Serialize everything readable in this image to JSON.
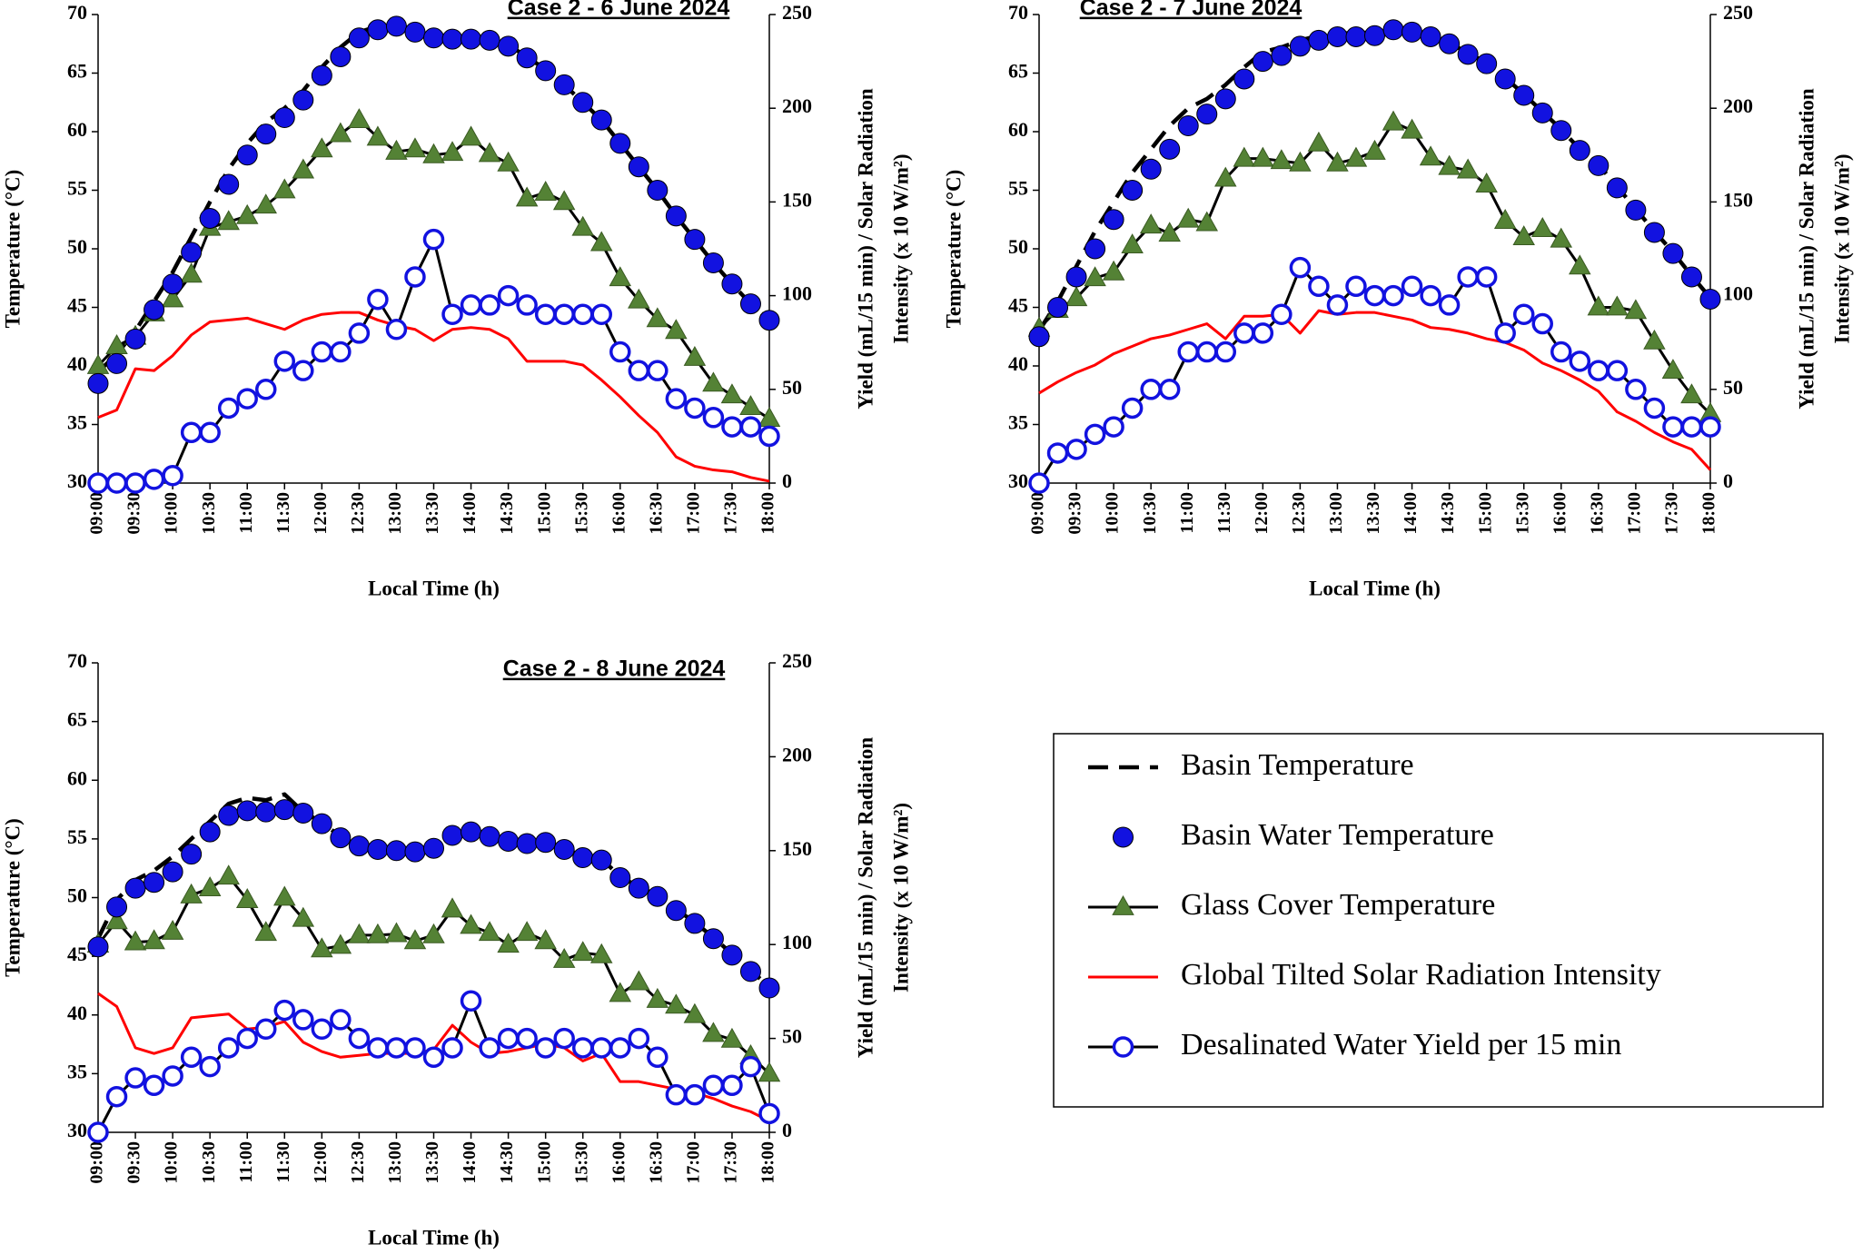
{
  "chart_data": [
    {
      "type": "line",
      "title": "Case 2 - 6 June 2024",
      "xlabel": "Local Time (h)",
      "ylabel": "Temperature (°C)",
      "y2label": [
        "Yield (mL/15 min) / Solar Radiation",
        "Intensity (x 10 W/m²)"
      ],
      "categories": [
        "09:00",
        null,
        "09:30",
        null,
        "10:00",
        null,
        "10:30",
        null,
        "11:00",
        null,
        "11:30",
        null,
        "12:00",
        null,
        "12:30",
        null,
        "13:00",
        null,
        "13:30",
        null,
        "14:00",
        null,
        "14:30",
        null,
        "15:00",
        null,
        "15:30",
        null,
        "16:00",
        null,
        "16:30",
        null,
        "17:00",
        null,
        "17:30",
        null,
        "18:00"
      ],
      "ylim": [
        30,
        70
      ],
      "yticks": [
        30,
        35,
        40,
        45,
        50,
        55,
        60,
        65,
        70
      ],
      "y2lim": [
        0,
        250
      ],
      "y2ticks": [
        0,
        50,
        100,
        150,
        200,
        250
      ],
      "series": [
        {
          "name": "Basin Temperature",
          "color": "#000000",
          "line": "dashed",
          "marker": "none",
          "values": [
            39.5,
            41,
            43,
            45.5,
            48,
            51,
            54,
            56.8,
            59,
            60.8,
            62,
            63.5,
            65.5,
            67.2,
            68.5,
            69,
            69.2,
            68.6,
            68.1,
            68,
            68,
            67.9,
            67.4,
            66.4,
            65.3,
            64,
            62.5,
            61,
            59,
            57,
            55,
            52.8,
            50.8,
            48.8,
            47,
            45.3,
            43.9
          ]
        },
        {
          "name": "Basin Water Temperature",
          "color": "#1212e0",
          "line": "none",
          "marker": "circle",
          "values": [
            38.5,
            40.2,
            42.3,
            44.8,
            47,
            49.7,
            52.6,
            55.5,
            58,
            59.8,
            61.2,
            62.7,
            64.8,
            66.4,
            68,
            68.7,
            69,
            68.5,
            68,
            67.9,
            67.9,
            67.8,
            67.3,
            66.3,
            65.2,
            64,
            62.5,
            61,
            59,
            57,
            55,
            52.8,
            50.8,
            48.8,
            47,
            45.3,
            43.9
          ]
        },
        {
          "name": "Glass Cover Temperature",
          "color": "#000000",
          "marker_color": "#548235",
          "line": "solid",
          "marker": "triangle",
          "values": [
            40,
            41.7,
            42.5,
            44.5,
            45.7,
            47.8,
            51.8,
            52.3,
            52.8,
            53.7,
            55,
            56.7,
            58.5,
            59.8,
            61,
            59.5,
            58.3,
            58.5,
            58,
            58.2,
            59.5,
            58.1,
            57.3,
            54.3,
            54.8,
            54,
            51.8,
            50.5,
            47.5,
            45.6,
            44,
            43,
            40.7,
            38.5,
            37.5,
            36.5,
            35.5
          ]
        },
        {
          "name": "Global Tilted Solar Radiation Intensity",
          "color": "#ff0000",
          "line": "solid",
          "marker": "none",
          "axis": "y2",
          "values": [
            35,
            39,
            61,
            60,
            68,
            79,
            86,
            87,
            88,
            85,
            82,
            87,
            90,
            91,
            91,
            87,
            84,
            82,
            76,
            82,
            83,
            82,
            77,
            65,
            65,
            65,
            63,
            55,
            46,
            36,
            27,
            14,
            9,
            7,
            6,
            3,
            1
          ]
        },
        {
          "name": "Desalinated Water Yield per 15 min",
          "color": "#000000",
          "marker_color": "#1212e0",
          "line": "solid",
          "marker": "open-circle",
          "axis": "y2",
          "values": [
            0,
            0,
            0,
            2,
            4,
            27,
            27,
            40,
            45,
            50,
            65,
            60,
            70,
            70,
            80,
            98,
            82,
            110,
            130,
            90,
            95,
            95,
            100,
            95,
            90,
            90,
            90,
            90,
            70,
            60,
            60,
            45,
            40,
            35,
            30,
            30,
            25
          ]
        }
      ]
    },
    {
      "type": "line",
      "title": "Case 2 - 7 June 2024",
      "xlabel": "Local Time (h)",
      "ylabel": "Temperature (°C)",
      "y2label": [
        "Yield (mL/15 min) / Solar Radiation",
        "Intensity (x 10 W/m²)"
      ],
      "categories": [
        "09:00",
        null,
        "09:30",
        null,
        "10:00",
        null,
        "10:30",
        null,
        "11:00",
        null,
        "11:30",
        null,
        "12:00",
        null,
        "12:30",
        null,
        "13:00",
        null,
        "13:30",
        null,
        "14:00",
        null,
        "14:30",
        null,
        "15:00",
        null,
        "15:30",
        null,
        "16:00",
        null,
        "16:30",
        null,
        "17:00",
        null,
        "17:30",
        null,
        "18:00"
      ],
      "ylim": [
        30,
        70
      ],
      "yticks": [
        30,
        35,
        40,
        45,
        50,
        55,
        60,
        65,
        70
      ],
      "y2lim": [
        0,
        250
      ],
      "y2ticks": [
        0,
        50,
        100,
        150,
        200,
        250
      ],
      "series": [
        {
          "name": "Basin Temperature",
          "color": "#000000",
          "line": "dashed",
          "marker": "none",
          "values": [
            43,
            45.5,
            48.5,
            51.5,
            54,
            56.5,
            58.5,
            60.5,
            62,
            62.8,
            64,
            65.5,
            66.8,
            67.2,
            67.8,
            68.2,
            68.4,
            68.4,
            68.5,
            68.9,
            68.7,
            68.2,
            67.6,
            66.7,
            65.9,
            64.6,
            63.2,
            61.7,
            60.2,
            58.5,
            57.2,
            55.3,
            53.4,
            51.5,
            49.7,
            47.7,
            45.8
          ]
        },
        {
          "name": "Basin Water Temperature",
          "color": "#1212e0",
          "line": "none",
          "marker": "circle",
          "values": [
            42.5,
            45,
            47.6,
            50,
            52.5,
            55,
            56.8,
            58.5,
            60.5,
            61.5,
            62.8,
            64.5,
            66,
            66.5,
            67.3,
            67.8,
            68.1,
            68.1,
            68.2,
            68.7,
            68.5,
            68.1,
            67.5,
            66.6,
            65.8,
            64.5,
            63.1,
            61.6,
            60.1,
            58.4,
            57.1,
            55.2,
            53.3,
            51.4,
            49.6,
            47.6,
            45.7
          ]
        },
        {
          "name": "Glass Cover Temperature",
          "color": "#000000",
          "marker_color": "#548235",
          "line": "solid",
          "marker": "triangle",
          "values": [
            43.2,
            44.8,
            45.8,
            47.5,
            48,
            50.3,
            52,
            51.3,
            52.5,
            52.2,
            56,
            57.7,
            57.7,
            57.5,
            57.3,
            59,
            57.3,
            57.7,
            58.3,
            60.8,
            60.1,
            57.8,
            57,
            56.7,
            55.5,
            52.4,
            51,
            51.7,
            50.8,
            48.5,
            45,
            45,
            44.7,
            42.1,
            39.6,
            37.5,
            35.9
          ]
        },
        {
          "name": "Global Tilted Solar Radiation Intensity",
          "color": "#ff0000",
          "line": "solid",
          "marker": "none",
          "axis": "y2",
          "values": [
            48,
            54,
            59,
            63,
            69,
            73,
            77,
            79,
            82,
            85,
            77,
            89,
            89,
            90,
            80,
            92,
            90,
            91,
            91,
            89,
            87,
            83,
            82,
            80,
            77,
            75,
            71,
            64,
            60,
            55,
            49,
            38,
            33,
            27,
            22,
            18,
            7
          ]
        },
        {
          "name": "Desalinated Water Yield per 15 min",
          "color": "#000000",
          "marker_color": "#1212e0",
          "line": "solid",
          "marker": "open-circle",
          "axis": "y2",
          "values": [
            0,
            16,
            18,
            26,
            30,
            40,
            50,
            50,
            70,
            70,
            70,
            80,
            80,
            90,
            115,
            105,
            95,
            105,
            100,
            100,
            105,
            100,
            95,
            110,
            110,
            80,
            90,
            85,
            70,
            65,
            60,
            60,
            50,
            40,
            30,
            30,
            30
          ]
        }
      ]
    },
    {
      "type": "line",
      "title": "Case 2 - 8 June 2024",
      "xlabel": "Local Time (h)",
      "ylabel": "Temperature (°C)",
      "y2label": [
        "Yield (mL/15 min) / Solar Radiation",
        "Intensity (x 10 W/m²)"
      ],
      "categories": [
        "09:00",
        null,
        "09:30",
        null,
        "10:00",
        null,
        "10:30",
        null,
        "11:00",
        null,
        "11:30",
        null,
        "12:00",
        null,
        "12:30",
        null,
        "13:00",
        null,
        "13:30",
        null,
        "14:00",
        null,
        "14:30",
        null,
        "15:00",
        null,
        "15:30",
        null,
        "16:00",
        null,
        "16:30",
        null,
        "17:00",
        null,
        "17:30",
        null,
        "18:00"
      ],
      "ylim": [
        30,
        70
      ],
      "yticks": [
        30,
        35,
        40,
        45,
        50,
        55,
        60,
        65,
        70
      ],
      "y2lim": [
        0,
        250
      ],
      "y2ticks": [
        0,
        50,
        100,
        150,
        200,
        250
      ],
      "series": [
        {
          "name": "Basin Temperature",
          "color": "#000000",
          "line": "dashed",
          "marker": "none",
          "values": [
            46.5,
            49.8,
            51.5,
            52.3,
            53.5,
            55,
            56.5,
            58,
            58.5,
            58.3,
            58.8,
            57.3,
            56.4,
            55.2,
            54.5,
            54.2,
            54.1,
            54,
            54.3,
            55.4,
            55.7,
            55.3,
            54.9,
            54.7,
            54.8,
            54.2,
            53.5,
            53.3,
            51.8,
            50.9,
            50.2,
            49,
            47.9,
            46.6,
            45.2,
            43.8,
            42.4
          ]
        },
        {
          "name": "Basin Water Temperature",
          "color": "#1212e0",
          "line": "none",
          "marker": "circle",
          "values": [
            45.8,
            49.2,
            50.8,
            51.3,
            52.2,
            53.7,
            55.6,
            57,
            57.4,
            57.3,
            57.5,
            57.2,
            56.3,
            55.1,
            54.4,
            54.1,
            54,
            53.9,
            54.2,
            55.3,
            55.6,
            55.2,
            54.8,
            54.6,
            54.7,
            54.1,
            53.4,
            53.2,
            51.7,
            50.8,
            50.1,
            48.9,
            47.8,
            46.5,
            45.1,
            43.7,
            42.3
          ]
        },
        {
          "name": "Glass Cover Temperature",
          "color": "#000000",
          "marker_color": "#548235",
          "line": "solid",
          "marker": "triangle",
          "values": [
            46,
            48,
            46.2,
            46.3,
            47.1,
            50.2,
            50.8,
            51.8,
            49.8,
            47,
            50,
            48.2,
            45.6,
            45.9,
            46.8,
            46.8,
            46.9,
            46.3,
            46.8,
            49,
            47.6,
            47,
            46,
            47,
            46.3,
            44.7,
            45.3,
            45.1,
            41.8,
            42.8,
            41.3,
            40.8,
            40,
            38.4,
            37.9,
            36.5,
            35
          ]
        },
        {
          "name": "Global Tilted Solar Radiation Intensity",
          "color": "#ff0000",
          "line": "solid",
          "marker": "none",
          "axis": "y2",
          "values": [
            74,
            67,
            45,
            42,
            45,
            61,
            62,
            63,
            55,
            56,
            59,
            48,
            43,
            40,
            41,
            42,
            42,
            42,
            44,
            57,
            48,
            42,
            43,
            45,
            47,
            45,
            38,
            42,
            27,
            27,
            25,
            23,
            21,
            18,
            14,
            11,
            6
          ]
        },
        {
          "name": "Desalinated Water Yield per 15 min",
          "color": "#000000",
          "marker_color": "#1212e0",
          "line": "solid",
          "marker": "open-circle",
          "axis": "y2",
          "values": [
            0,
            19,
            29,
            25,
            30,
            40,
            35,
            45,
            50,
            55,
            65,
            60,
            55,
            60,
            50,
            45,
            45,
            45,
            40,
            45,
            70,
            45,
            50,
            50,
            45,
            50,
            45,
            45,
            45,
            50,
            40,
            20,
            20,
            25,
            25,
            35,
            10
          ]
        }
      ]
    }
  ]
}
